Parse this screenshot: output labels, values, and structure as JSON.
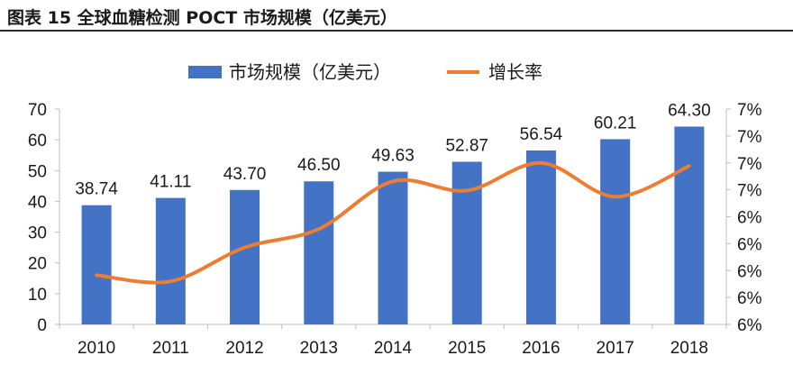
{
  "figure": {
    "title": "图表 15    全球血糖检测 POCT 市场规模（亿美元）"
  },
  "chart_data": {
    "type": "bar",
    "categories": [
      "2010",
      "2011",
      "2012",
      "2013",
      "2014",
      "2015",
      "2016",
      "2017",
      "2018"
    ],
    "series": [
      {
        "name": "市场规模（亿美元）",
        "type": "bar",
        "axis": "left",
        "values": [
          38.74,
          41.11,
          43.7,
          46.5,
          49.63,
          52.87,
          56.54,
          60.21,
          64.3
        ],
        "value_labels": [
          "38.74",
          "41.11",
          "43.70",
          "46.50",
          "49.63",
          "52.87",
          "56.54",
          "60.21",
          "64.30"
        ]
      },
      {
        "name": "增长率",
        "type": "line",
        "axis": "right",
        "values": [
          6.12,
          6.08,
          6.3,
          6.42,
          6.73,
          6.67,
          6.85,
          6.63,
          6.83
        ]
      }
    ],
    "y_left": {
      "min": 0,
      "max": 70,
      "ticks": [
        "0",
        "10",
        "20",
        "30",
        "40",
        "50",
        "60",
        "70"
      ]
    },
    "y_right": {
      "min": 5.8,
      "max": 7.2,
      "ticks": [
        "6%",
        "6%",
        "6%",
        "6%",
        "6%",
        "7%",
        "7%",
        "7%",
        "7%"
      ]
    },
    "legend_position": "top",
    "grid": false,
    "colors": {
      "bar": "#4472c4",
      "line": "#ed7d31"
    }
  }
}
